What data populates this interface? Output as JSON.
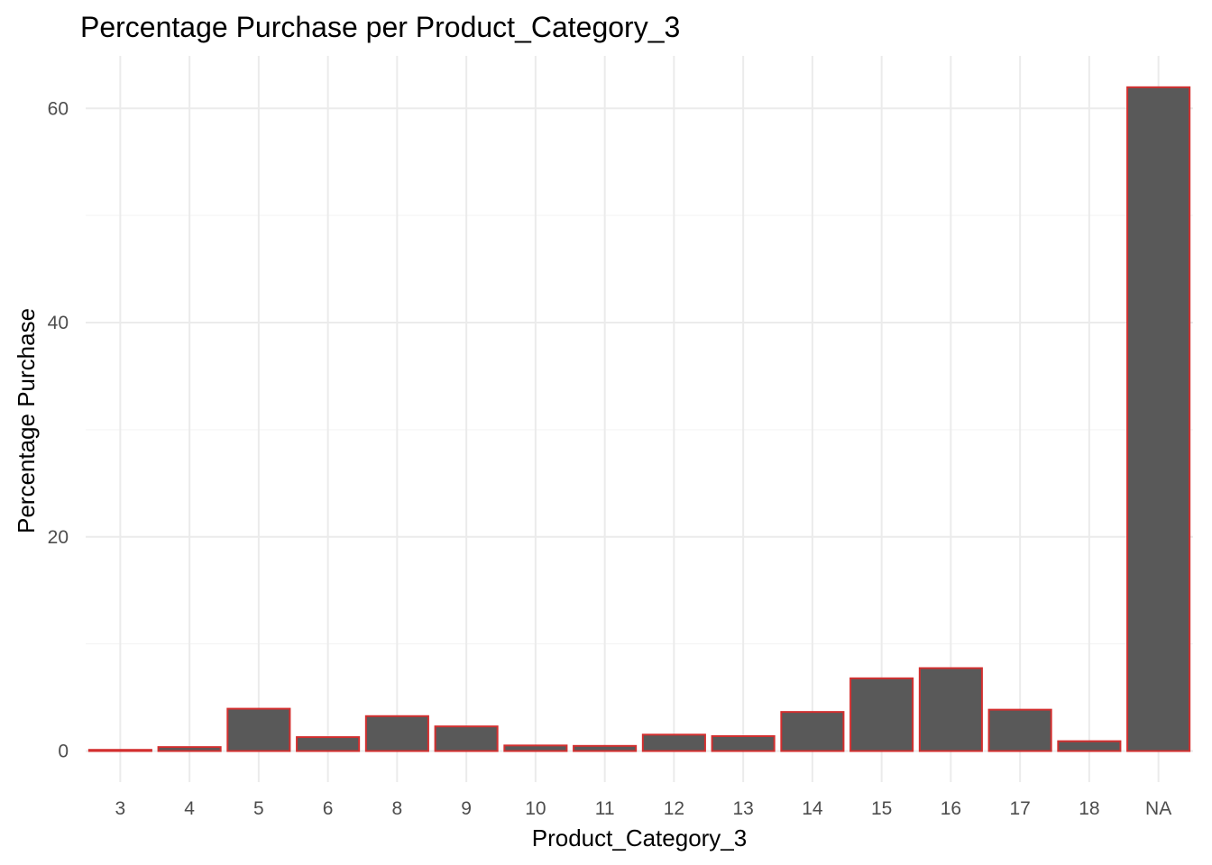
{
  "chart_data": {
    "type": "bar",
    "title": "Percentage Purchase per Product_Category_3",
    "xlabel": "Product_Category_3",
    "ylabel": "Percentage Purchase",
    "categories": [
      "3",
      "4",
      "5",
      "6",
      "8",
      "9",
      "10",
      "11",
      "12",
      "13",
      "14",
      "15",
      "16",
      "17",
      "18",
      "NA"
    ],
    "values": [
      0.11,
      0.37,
      3.95,
      1.3,
      3.26,
      2.3,
      0.52,
      0.48,
      1.53,
      1.39,
      3.65,
      6.79,
      7.74,
      3.86,
      0.92,
      61.97
    ],
    "y_ticks": [
      0,
      20,
      40,
      60
    ],
    "ylim": [
      -2.9,
      64.9
    ],
    "grid": true,
    "legend": "none",
    "colors": {
      "bar_fill": "#595959",
      "bar_outline": "#d32f2f",
      "grid": "#ebebeb",
      "background": "#ffffff"
    }
  }
}
